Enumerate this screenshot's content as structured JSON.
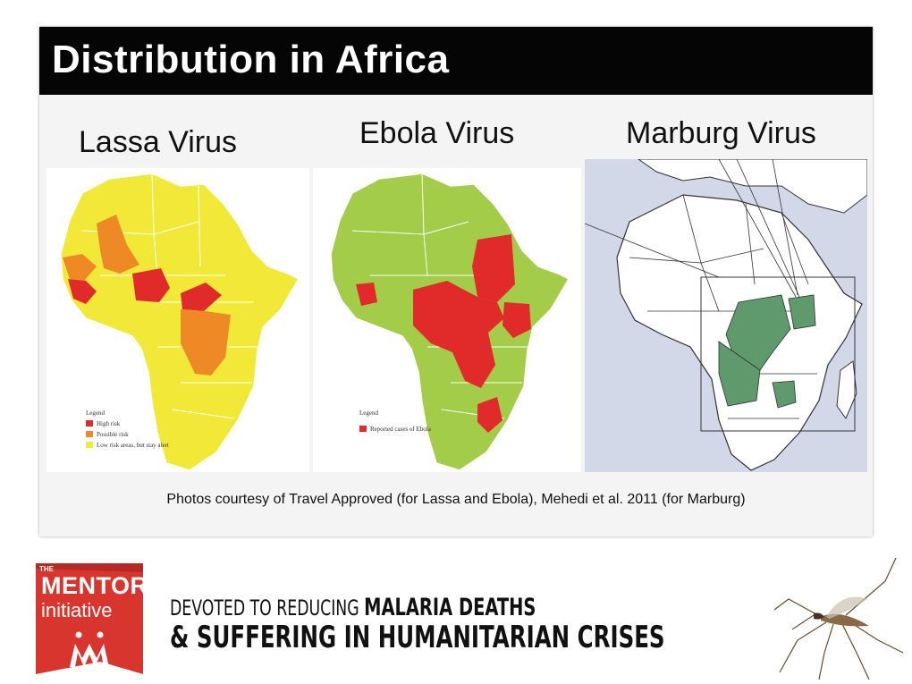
{
  "slide": {
    "title": "Distribution in Africa",
    "caption": "Photos courtesy of Travel Approved (for Lassa and Ebola), Mehedi et al. 2011 (for Marburg)"
  },
  "maps": {
    "lassa": {
      "label": "Lassa Virus",
      "legend": {
        "title": "Legend",
        "items": [
          {
            "label": "High risk",
            "color": "#e12a2a"
          },
          {
            "label": "Possible risk",
            "color": "#ee8a25"
          },
          {
            "label": "Low risk areas, but stay alert",
            "color": "#f1e838"
          }
        ]
      },
      "base_color": "#f1e838"
    },
    "ebola": {
      "label": "Ebola Virus",
      "legend": {
        "title": "Legend",
        "items": [
          {
            "label": "Reported cases of Ebola",
            "color": "#e12a2a"
          }
        ]
      },
      "base_color": "#a3cc48"
    },
    "marburg": {
      "label": "Marburg Virus",
      "land_color": "#ffffff",
      "sea_color": "#d3d8e8",
      "highlight_color": "#5f9a6c"
    }
  },
  "footer": {
    "logo": {
      "the": "THE",
      "mentor": "MENTOR",
      "initiative": "initiative",
      "color": "#d8352e"
    },
    "tagline_prefix": "DEVOTED TO REDUCING ",
    "tagline_bold": "MALARIA DEATHS",
    "tagline_line2": "& SUFFERING IN HUMANITARIAN CRISES",
    "mosquito_icon": "mosquito-icon"
  }
}
